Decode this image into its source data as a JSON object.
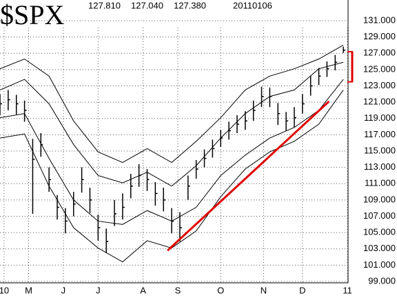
{
  "chart_data": {
    "type": "ohlc",
    "title": "$SPX",
    "stats": [
      "127.810",
      "127.040",
      "127.380"
    ],
    "date": "20110106",
    "color": "#000000",
    "x": [
      0,
      4,
      8,
      12,
      16,
      20,
      24,
      28,
      32,
      36,
      40,
      44,
      48,
      52,
      56,
      60,
      64,
      68,
      72,
      76,
      80,
      84,
      88,
      92,
      96,
      100,
      104,
      108,
      112,
      116,
      120,
      124,
      128,
      132,
      136,
      140,
      144,
      148,
      152,
      156,
      160,
      164,
      168
    ],
    "high": [
      122,
      122.5,
      121.9,
      121.2,
      116.5,
      117.2,
      113,
      109.6,
      108,
      110,
      113,
      110.5,
      107.2,
      105.5,
      109,
      109.8,
      112.2,
      113.4,
      112.8,
      111.2,
      110.5,
      108,
      107.5,
      112,
      113.9,
      115.2,
      116.4,
      117.6,
      118.6,
      119.4,
      119.9,
      121.2,
      122.9,
      122.8,
      120.9,
      119.8,
      120.4,
      122,
      124.2,
      125.2,
      126,
      126.8,
      127.81
    ],
    "low": [
      119.4,
      120,
      119.5,
      118.6,
      107.3,
      114.3,
      110,
      106.6,
      104.9,
      107,
      109.9,
      107.4,
      104,
      102.5,
      105.8,
      106.6,
      109.2,
      110.6,
      110.1,
      108.3,
      107.6,
      104.9,
      103.9,
      109,
      111.6,
      113,
      114.2,
      115.5,
      116.4,
      117.2,
      117.6,
      118.7,
      120.4,
      120.4,
      118.2,
      117.5,
      117.9,
      119.6,
      121.8,
      123.1,
      124.1,
      124.9,
      127.04
    ],
    "close": [
      120.8,
      121.3,
      120.8,
      120,
      114,
      115.8,
      111.5,
      108.1,
      106.4,
      108.5,
      111.5,
      109,
      105.6,
      103.9,
      107.3,
      108.1,
      110.7,
      112,
      111.5,
      109.8,
      109,
      106.4,
      105.6,
      110.7,
      112.8,
      114.1,
      115.3,
      116.6,
      117.5,
      118.3,
      118.7,
      120,
      121.7,
      121.7,
      119.6,
      118.7,
      119.1,
      120.8,
      123,
      124.2,
      125.1,
      125.9,
      127.38
    ],
    "band_x": [
      0,
      12,
      24,
      36,
      48,
      60,
      72,
      84,
      96,
      108,
      120,
      132,
      144,
      156,
      168
    ],
    "bands": [
      {
        "color": "#000000",
        "values": [
          125.1,
          126.3,
          124.2,
          118.7,
          114.9,
          113.6,
          115.3,
          113.6,
          116.2,
          119.1,
          122.5,
          124.2,
          125.1,
          126.3,
          128
        ]
      },
      {
        "color": "#000000",
        "values": [
          122.5,
          123.8,
          120.8,
          115.8,
          112,
          111.1,
          112.4,
          110.7,
          113.2,
          116.6,
          119.6,
          121.7,
          122.5,
          125.1,
          125.9
        ]
      },
      {
        "color": "#000000",
        "values": [
          119.1,
          119.6,
          114.1,
          109,
          106.4,
          106,
          107.7,
          106.4,
          108.1,
          112,
          114.5,
          116.6,
          117.9,
          120,
          123.8
        ]
      },
      {
        "color": "#000000",
        "values": [
          116.6,
          117.1,
          110.7,
          105.6,
          103.1,
          101.4,
          104,
          103.1,
          105.2,
          109.4,
          112.8,
          114.9,
          116.2,
          118.3,
          122.5
        ]
      }
    ],
    "trendline": {
      "color": "#e00000",
      "x": [
        82,
        161
      ],
      "y": [
        102.8,
        121.1
      ]
    },
    "bracket": {
      "color": "#e00000",
      "values": [
        123.5,
        127.2
      ]
    },
    "xlim": [
      0,
      172
    ],
    "ylim": [
      98,
      132
    ],
    "xticks": [
      {
        "value": 2,
        "label": "10"
      },
      {
        "value": 14,
        "label": "M"
      },
      {
        "value": 31,
        "label": "J"
      },
      {
        "value": 48,
        "label": "J"
      },
      {
        "value": 70,
        "label": "A"
      },
      {
        "value": 87,
        "label": "S"
      },
      {
        "value": 108,
        "label": "O"
      },
      {
        "value": 129,
        "label": "N"
      },
      {
        "value": 148,
        "label": "D"
      },
      {
        "value": 170,
        "label": "11"
      }
    ],
    "yticks": [
      {
        "value": 99,
        "label": "99.000"
      },
      {
        "value": 101,
        "label": "101.000"
      },
      {
        "value": 103,
        "label": "103.000"
      },
      {
        "value": 105,
        "label": "105.000"
      },
      {
        "value": 107,
        "label": "107.000"
      },
      {
        "value": 109,
        "label": "109.000"
      },
      {
        "value": 111,
        "label": "111.000"
      },
      {
        "value": 113,
        "label": "113.000"
      },
      {
        "value": 115,
        "label": "115.000"
      },
      {
        "value": 117,
        "label": "117.000"
      },
      {
        "value": 119,
        "label": "119.000"
      },
      {
        "value": 121,
        "label": "121.000"
      },
      {
        "value": 123,
        "label": "123.000"
      },
      {
        "value": 125,
        "label": "125.000"
      },
      {
        "value": 127,
        "label": "127.000"
      },
      {
        "value": 129,
        "label": "129.000"
      },
      {
        "value": 131,
        "label": "131.000"
      }
    ],
    "grid": true
  }
}
